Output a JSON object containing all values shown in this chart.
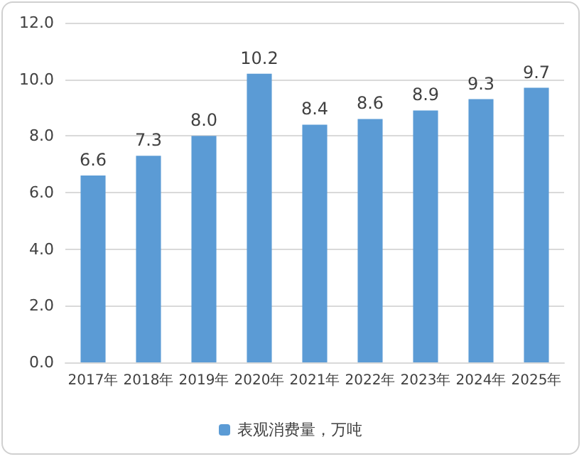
{
  "chart_data": {
    "type": "bar",
    "categories": [
      "2017年",
      "2018年",
      "2019年",
      "2020年",
      "2021年",
      "2022年",
      "2023年",
      "2024年",
      "2025年"
    ],
    "series": [
      {
        "name": "表观消费量，万吨",
        "color": "#5b9bd5",
        "values": [
          6.6,
          7.3,
          8.0,
          10.2,
          8.4,
          8.6,
          8.9,
          9.3,
          9.7
        ]
      }
    ],
    "value_labels": [
      "6.6",
      "7.3",
      "8.0",
      "10.2",
      "8.4",
      "8.6",
      "8.9",
      "9.3",
      "9.7"
    ],
    "ylim": [
      0,
      12
    ],
    "yticks": [
      {
        "value": 0,
        "label": "0.0"
      },
      {
        "value": 2,
        "label": "2.0"
      },
      {
        "value": 4,
        "label": "4.0"
      },
      {
        "value": 6,
        "label": "6.0"
      },
      {
        "value": 8,
        "label": "8.0"
      },
      {
        "value": 10,
        "label": "10.0"
      },
      {
        "value": 12,
        "label": "12.0"
      }
    ],
    "grid": "y",
    "legend": "bottom"
  }
}
